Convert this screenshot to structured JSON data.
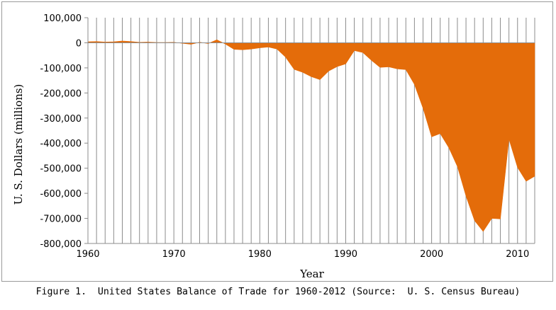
{
  "caption": "Figure 1.  United States Balance of Trade for 1960-2012 (Source:  U. S. Census Bureau)",
  "chart_data": {
    "type": "area",
    "title": "",
    "xlabel": "Year",
    "ylabel": "U. S. Dollars (millions)",
    "xlim": [
      1960,
      2012
    ],
    "ylim": [
      -800000,
      100000
    ],
    "x_ticks": [
      1960,
      1970,
      1980,
      1990,
      2000,
      2010
    ],
    "x_tick_labels": [
      "1960",
      "1970",
      "1980",
      "1990",
      "2000",
      "2010"
    ],
    "y_ticks": [
      100000,
      0,
      -100000,
      -200000,
      -300000,
      -400000,
      -500000,
      -600000,
      -700000,
      -800000
    ],
    "y_tick_labels": [
      "100,000",
      "0",
      "-100,000",
      "-200,000",
      "-300,000",
      "-400,000",
      "-500,000",
      "-600,000",
      "-700,000",
      "-800,000"
    ],
    "vertical_grid": true,
    "horizontal_grid": false,
    "fill_color": "#e46c0a",
    "x": [
      1960,
      1961,
      1962,
      1963,
      1964,
      1965,
      1966,
      1967,
      1968,
      1969,
      1970,
      1971,
      1972,
      1973,
      1974,
      1975,
      1976,
      1977,
      1978,
      1979,
      1980,
      1981,
      1982,
      1983,
      1984,
      1985,
      1986,
      1987,
      1988,
      1989,
      1990,
      1991,
      1992,
      1993,
      1994,
      1995,
      1996,
      1997,
      1998,
      1999,
      2000,
      2001,
      2002,
      2003,
      2004,
      2005,
      2006,
      2007,
      2008,
      2009,
      2010,
      2011,
      2012
    ],
    "y": [
      4000,
      5000,
      3000,
      4000,
      7000,
      5000,
      2000,
      3000,
      1000,
      1000,
      2000,
      -2000,
      -6000,
      2000,
      -3000,
      12000,
      -5000,
      -26000,
      -28000,
      -25000,
      -20000,
      -17000,
      -25000,
      -57000,
      -106000,
      -118000,
      -135000,
      -147000,
      -113000,
      -95000,
      -84000,
      -31000,
      -39000,
      -70000,
      -98000,
      -96000,
      -104000,
      -107000,
      -166000,
      -261000,
      -375000,
      -362000,
      -418000,
      -493000,
      -611000,
      -709000,
      -752000,
      -700000,
      -702000,
      -384000,
      -497000,
      -552000,
      -532000
    ]
  }
}
